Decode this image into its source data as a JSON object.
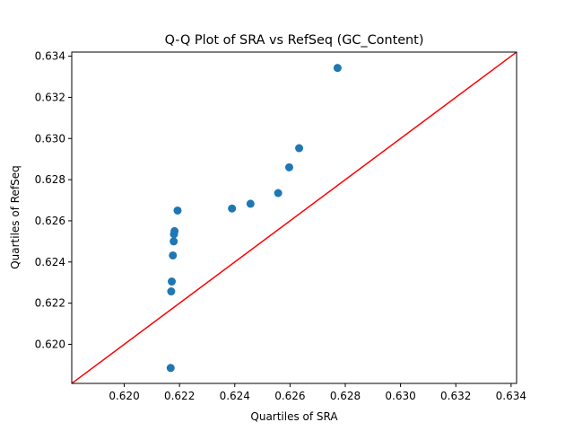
{
  "chart_data": {
    "type": "scatter",
    "title": "Q-Q Plot of SRA vs RefSeq (GC_Content)",
    "xlabel": "Quartiles of SRA",
    "ylabel": "Quartiles of RefSeq",
    "xlim": [
      0.6181,
      0.6342
    ],
    "ylim": [
      0.6181,
      0.6342
    ],
    "xticks": [
      0.62,
      0.622,
      0.624,
      0.626,
      0.628,
      0.63,
      0.632,
      0.634
    ],
    "yticks": [
      0.62,
      0.622,
      0.624,
      0.626,
      0.628,
      0.63,
      0.632,
      0.634
    ],
    "xtick_labels": [
      "0.620",
      "0.622",
      "0.624",
      "0.626",
      "0.628",
      "0.630",
      "0.632",
      "0.634"
    ],
    "ytick_labels": [
      "0.620",
      "0.622",
      "0.624",
      "0.626",
      "0.628",
      "0.630",
      "0.632",
      "0.634"
    ],
    "grid": false,
    "points": [
      {
        "x": 0.62168,
        "y": 0.61885
      },
      {
        "x": 0.6217,
        "y": 0.62257
      },
      {
        "x": 0.62172,
        "y": 0.62305
      },
      {
        "x": 0.62176,
        "y": 0.62432
      },
      {
        "x": 0.62179,
        "y": 0.625
      },
      {
        "x": 0.6218,
        "y": 0.62535
      },
      {
        "x": 0.62182,
        "y": 0.6255
      },
      {
        "x": 0.62193,
        "y": 0.6265
      },
      {
        "x": 0.6239,
        "y": 0.6266
      },
      {
        "x": 0.62457,
        "y": 0.62683
      },
      {
        "x": 0.62557,
        "y": 0.62735
      },
      {
        "x": 0.62597,
        "y": 0.6286
      },
      {
        "x": 0.62633,
        "y": 0.62953
      },
      {
        "x": 0.62772,
        "y": 0.63343
      }
    ],
    "reference_line": {
      "type": "y=x"
    },
    "colors": {
      "points": "#1f77b4",
      "reference_line": "#ff0000",
      "axes": "#000000"
    }
  }
}
